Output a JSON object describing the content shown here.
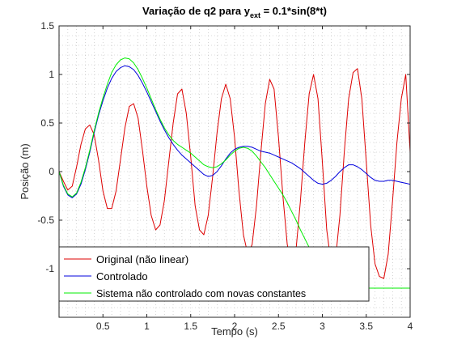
{
  "figure": {
    "title": "Variação de q2 para y",
    "title_sub": "ext",
    "title_tail": " = 0.1*sin(8*t)"
  },
  "chart_data": {
    "type": "line",
    "xlabel": "Tempo (s)",
    "ylabel": "Posição (m)",
    "xlim": [
      0,
      4
    ],
    "ylim": [
      -1.5,
      1.5
    ],
    "xticks": [
      0.5,
      1,
      1.5,
      2,
      2.5,
      3,
      3.5,
      4
    ],
    "xtick_labels": [
      "0.5",
      "1",
      "1.5",
      "2",
      "2.5",
      "3",
      "3.5",
      "4"
    ],
    "yticks": [
      -1,
      -0.5,
      0,
      0.5,
      1,
      1.5
    ],
    "ytick_labels": [
      "-1",
      "-0.5",
      "0",
      "0.5",
      "1",
      "1.5"
    ],
    "grid": "minor dotted",
    "legend_position": "bottom-left",
    "series": [
      {
        "name": "Original (não linear)",
        "color": "#dd0000",
        "x": [
          0,
          0.05,
          0.1,
          0.15,
          0.2,
          0.25,
          0.3,
          0.35,
          0.4,
          0.45,
          0.5,
          0.55,
          0.6,
          0.65,
          0.7,
          0.75,
          0.8,
          0.85,
          0.9,
          0.95,
          1.0,
          1.05,
          1.1,
          1.15,
          1.2,
          1.25,
          1.3,
          1.35,
          1.4,
          1.45,
          1.5,
          1.55,
          1.6,
          1.65,
          1.7,
          1.75,
          1.8,
          1.85,
          1.9,
          1.95,
          2.0,
          2.05,
          2.1,
          2.15,
          2.2,
          2.25,
          2.3,
          2.35,
          2.4,
          2.45,
          2.5,
          2.55,
          2.6,
          2.65,
          2.7,
          2.75,
          2.8,
          2.85,
          2.9,
          2.95,
          3.0,
          3.05,
          3.1,
          3.15,
          3.2,
          3.25,
          3.3,
          3.35,
          3.4,
          3.45,
          3.5,
          3.55,
          3.6,
          3.65,
          3.7,
          3.75,
          3.8,
          3.85,
          3.9,
          3.95,
          4.0
        ],
        "values": [
          0,
          -0.1,
          -0.19,
          -0.15,
          0.05,
          0.28,
          0.44,
          0.48,
          0.38,
          0.12,
          -0.2,
          -0.38,
          -0.38,
          -0.2,
          0.12,
          0.45,
          0.67,
          0.7,
          0.55,
          0.22,
          -0.15,
          -0.45,
          -0.6,
          -0.55,
          -0.3,
          0.1,
          0.5,
          0.8,
          0.85,
          0.6,
          0.15,
          -0.35,
          -0.6,
          -0.65,
          -0.45,
          -0.05,
          0.4,
          0.75,
          0.9,
          0.75,
          0.35,
          -0.2,
          -0.65,
          -0.85,
          -0.75,
          -0.35,
          0.2,
          0.7,
          0.95,
          0.85,
          0.35,
          -0.25,
          -0.75,
          -0.98,
          -0.8,
          -0.3,
          0.3,
          0.8,
          1.0,
          0.75,
          0.1,
          -0.6,
          -0.95,
          -0.9,
          -0.45,
          0.2,
          0.75,
          1.02,
          1.06,
          0.75,
          0.1,
          -0.55,
          -0.95,
          -1.08,
          -1.1,
          -0.85,
          -0.3,
          0.3,
          0.75,
          1.0,
          0.2
        ]
      },
      {
        "name": "Controlado",
        "color": "#0000dd",
        "x": [
          0,
          0.05,
          0.1,
          0.15,
          0.2,
          0.25,
          0.3,
          0.35,
          0.4,
          0.45,
          0.5,
          0.55,
          0.6,
          0.65,
          0.7,
          0.75,
          0.8,
          0.85,
          0.9,
          0.95,
          1.0,
          1.05,
          1.1,
          1.15,
          1.2,
          1.25,
          1.3,
          1.35,
          1.4,
          1.45,
          1.5,
          1.55,
          1.6,
          1.65,
          1.7,
          1.75,
          1.8,
          1.85,
          1.9,
          1.95,
          2.0,
          2.05,
          2.1,
          2.15,
          2.2,
          2.25,
          2.3,
          2.35,
          2.4,
          2.45,
          2.5,
          2.55,
          2.6,
          2.65,
          2.7,
          2.75,
          2.8,
          2.85,
          2.9,
          2.95,
          3.0,
          3.05,
          3.1,
          3.15,
          3.2,
          3.25,
          3.3,
          3.35,
          3.4,
          3.45,
          3.5,
          3.55,
          3.6,
          3.65,
          3.7,
          3.75,
          3.8,
          3.85,
          3.9,
          3.95,
          4.0
        ],
        "values": [
          0,
          -0.15,
          -0.24,
          -0.27,
          -0.23,
          -0.13,
          0.02,
          0.2,
          0.4,
          0.58,
          0.73,
          0.86,
          0.96,
          1.03,
          1.07,
          1.09,
          1.08,
          1.05,
          0.99,
          0.91,
          0.82,
          0.72,
          0.62,
          0.52,
          0.43,
          0.35,
          0.28,
          0.22,
          0.17,
          0.13,
          0.09,
          0.05,
          0.01,
          -0.03,
          -0.05,
          -0.04,
          0.0,
          0.06,
          0.13,
          0.19,
          0.23,
          0.25,
          0.26,
          0.26,
          0.25,
          0.23,
          0.21,
          0.2,
          0.19,
          0.17,
          0.15,
          0.13,
          0.11,
          0.09,
          0.06,
          0.03,
          -0.01,
          -0.05,
          -0.09,
          -0.12,
          -0.13,
          -0.12,
          -0.09,
          -0.05,
          0.0,
          0.04,
          0.07,
          0.07,
          0.05,
          0.02,
          -0.02,
          -0.06,
          -0.09,
          -0.1,
          -0.1,
          -0.09,
          -0.09,
          -0.1,
          -0.11,
          -0.12,
          -0.13
        ]
      },
      {
        "name": "Sistema não controlado com novas constantes",
        "color": "#00ee00",
        "x": [
          0,
          0.05,
          0.1,
          0.15,
          0.2,
          0.25,
          0.3,
          0.35,
          0.4,
          0.45,
          0.5,
          0.55,
          0.6,
          0.65,
          0.7,
          0.75,
          0.8,
          0.85,
          0.9,
          0.95,
          1.0,
          1.05,
          1.1,
          1.15,
          1.2,
          1.25,
          1.3,
          1.35,
          1.4,
          1.45,
          1.5,
          1.55,
          1.6,
          1.65,
          1.7,
          1.75,
          1.8,
          1.85,
          1.9,
          1.95,
          2.0,
          2.05,
          2.1,
          2.15,
          2.2,
          2.25,
          2.3,
          2.35,
          2.4,
          2.45,
          2.5,
          2.55,
          2.6,
          2.65,
          2.7,
          2.75,
          2.8,
          2.85,
          2.9,
          2.95,
          3.0,
          3.05,
          3.1,
          3.15,
          3.2,
          3.25,
          3.3,
          3.35,
          3.4,
          3.45,
          3.5,
          3.55,
          3.6,
          3.65,
          3.7,
          3.75,
          3.8,
          3.85,
          3.9,
          3.95,
          4.0
        ],
        "values": [
          0,
          -0.14,
          -0.23,
          -0.26,
          -0.22,
          -0.11,
          0.04,
          0.22,
          0.42,
          0.6,
          0.76,
          0.9,
          1.02,
          1.1,
          1.15,
          1.17,
          1.16,
          1.12,
          1.05,
          0.96,
          0.86,
          0.75,
          0.64,
          0.54,
          0.45,
          0.38,
          0.32,
          0.28,
          0.25,
          0.22,
          0.19,
          0.15,
          0.11,
          0.07,
          0.05,
          0.04,
          0.05,
          0.08,
          0.12,
          0.17,
          0.21,
          0.24,
          0.25,
          0.24,
          0.21,
          0.16,
          0.1,
          0.04,
          -0.03,
          -0.1,
          -0.17,
          -0.24,
          -0.32,
          -0.41,
          -0.5,
          -0.6,
          -0.69,
          -0.78,
          -0.87,
          -0.95,
          -1.03,
          -1.1,
          -1.16,
          -1.2,
          -1.2,
          -1.2,
          -1.2,
          -1.2,
          -1.2,
          -1.2,
          -1.2,
          -1.2,
          -1.2,
          -1.2,
          -1.2,
          -1.2,
          -1.2,
          -1.2,
          -1.2,
          -1.2,
          -1.2
        ]
      }
    ]
  }
}
